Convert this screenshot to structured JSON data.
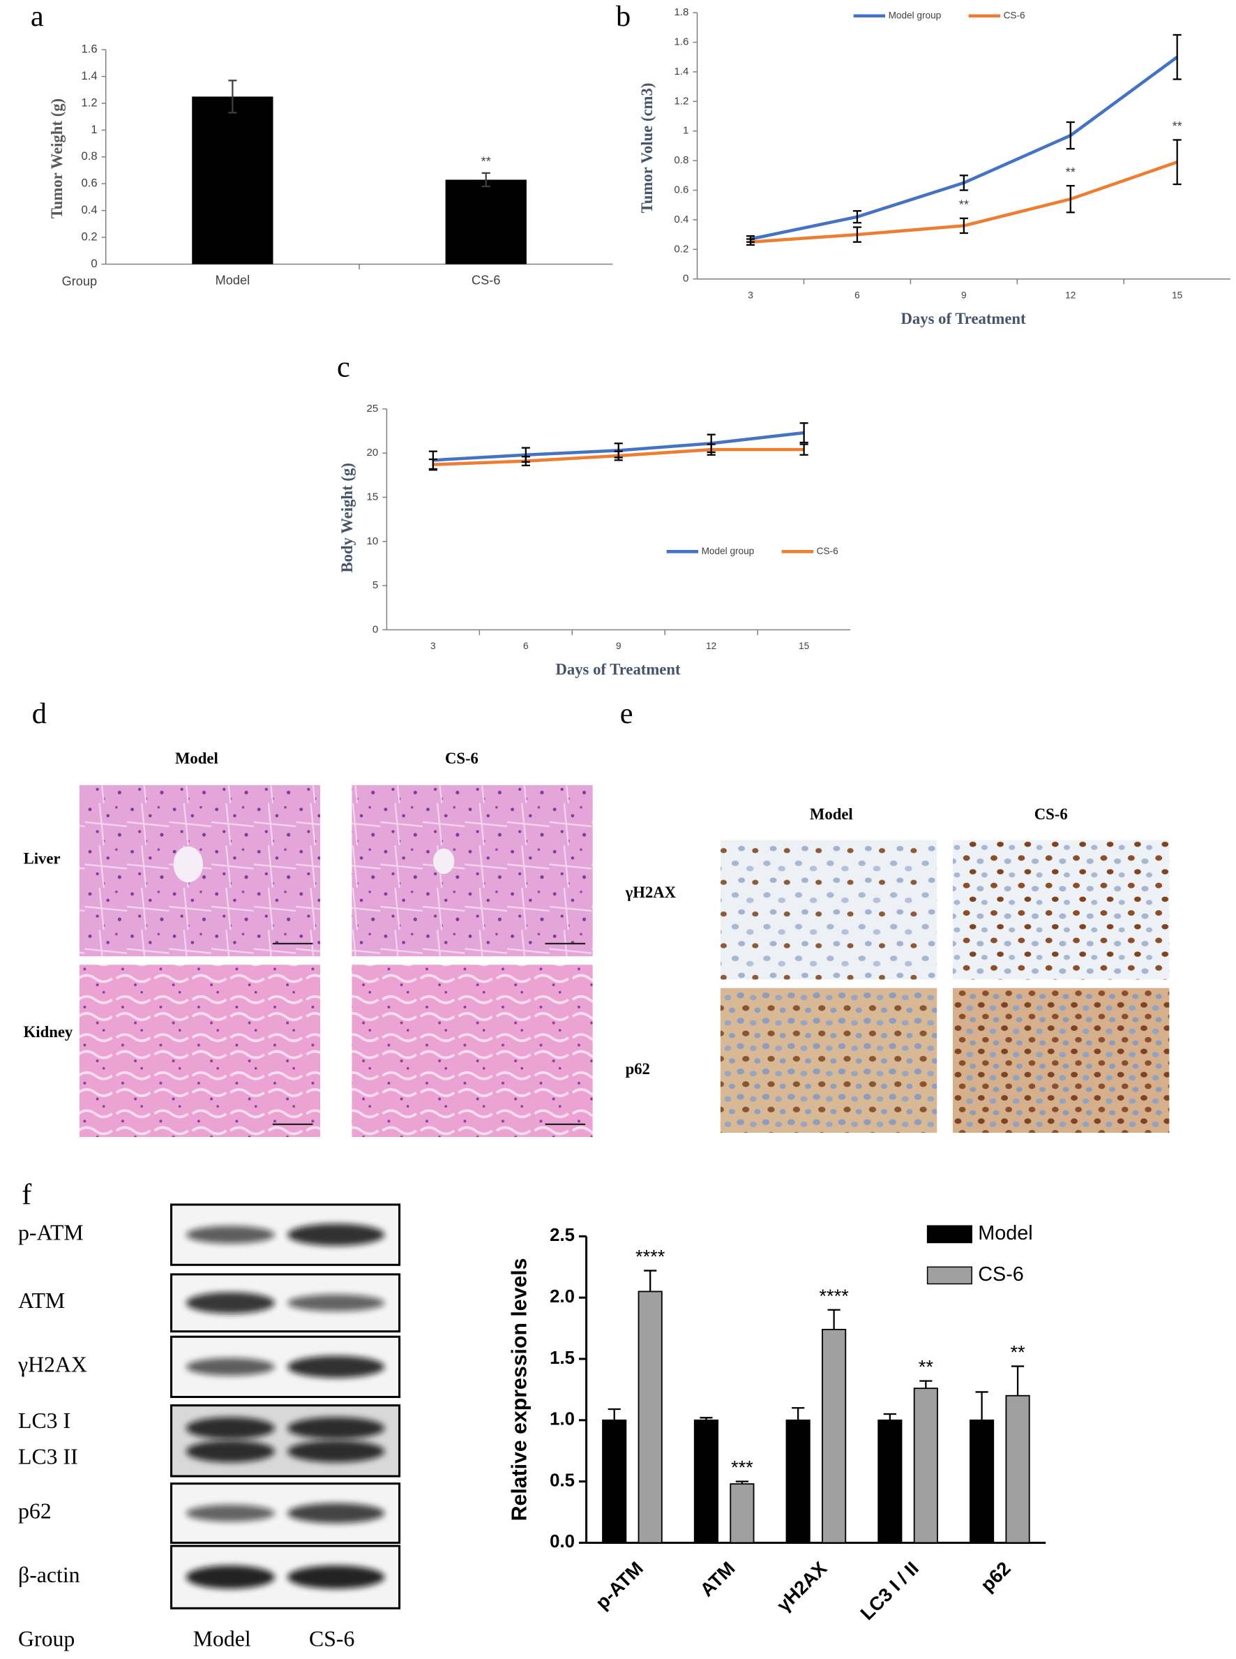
{
  "chart_data": [
    {
      "type": "bar",
      "panel": "a",
      "y_label": "Tumor Weight (g)",
      "x_label": "Group",
      "categories": [
        "Model",
        "CS-6"
      ],
      "values": [
        1.25,
        0.63
      ],
      "errors": [
        0.12,
        0.05
      ],
      "annotations": [
        null,
        "**"
      ],
      "color": "#000000",
      "ylim": [
        0,
        1.6
      ],
      "yticks": [
        0,
        0.2,
        0.4,
        0.6,
        0.8,
        1,
        1.2,
        1.4,
        1.6
      ]
    },
    {
      "type": "line",
      "panel": "b",
      "y_label": "Tumor  Volue (cm3)",
      "x_label": "Days of Treatment",
      "categories": [
        "3",
        "6",
        "9",
        "12",
        "15"
      ],
      "series": [
        {
          "name": "Model group",
          "color": "#4472c4",
          "values": [
            0.27,
            0.42,
            0.65,
            0.97,
            1.5
          ],
          "errors": [
            0.02,
            0.04,
            0.05,
            0.09,
            0.15
          ]
        },
        {
          "name": "CS-6",
          "color": "#ed7d31",
          "values": [
            0.25,
            0.3,
            0.36,
            0.54,
            0.79
          ],
          "errors": [
            0.02,
            0.05,
            0.05,
            0.09,
            0.15
          ],
          "annotations": [
            null,
            null,
            "**",
            "**",
            "**"
          ]
        }
      ],
      "ylim": [
        0,
        1.8
      ],
      "yticks": [
        0,
        0.2,
        0.4,
        0.6,
        0.8,
        1,
        1.2,
        1.4,
        1.6,
        1.8
      ],
      "legend": "top"
    },
    {
      "type": "line",
      "panel": "c",
      "y_label": "Body Weight (g)",
      "x_label": "Days of Treatment",
      "categories": [
        "3",
        "6",
        "9",
        "12",
        "15"
      ],
      "series": [
        {
          "name": "Model group",
          "color": "#4472c4",
          "values": [
            19.2,
            19.8,
            20.3,
            21.1,
            22.3
          ],
          "errors": [
            1.0,
            0.8,
            0.8,
            1.0,
            1.1
          ]
        },
        {
          "name": "CS-6",
          "color": "#ed7d31",
          "values": [
            18.7,
            19.1,
            19.7,
            20.4,
            20.4
          ],
          "errors": [
            0.6,
            0.5,
            0.5,
            0.6,
            0.6
          ]
        }
      ],
      "ylim": [
        0,
        25
      ],
      "yticks": [
        0,
        5,
        10,
        15,
        20,
        25
      ],
      "legend": "middle"
    },
    {
      "type": "grouped_bar",
      "y_label": "Relative expression levels",
      "categories": [
        "p-ATM",
        "ATM",
        "γH2AX",
        "LC3 I / II",
        "p62"
      ],
      "series": [
        {
          "name": "Model",
          "color": "#000000",
          "values": [
            1.0,
            1.0,
            1.0,
            1.0,
            1.0
          ],
          "errors": [
            0.09,
            0.02,
            0.1,
            0.05,
            0.23
          ]
        },
        {
          "name": "CS-6",
          "color": "#a0a0a0",
          "values": [
            2.05,
            0.48,
            1.74,
            1.26,
            1.2
          ],
          "errors": [
            0.17,
            0.02,
            0.16,
            0.06,
            0.24
          ],
          "annotations": [
            "****",
            "***",
            "****",
            "**",
            "**"
          ]
        }
      ],
      "ylim": [
        0,
        2.5
      ],
      "yticks": [
        {
          "value": 0,
          "label": "0.0"
        },
        {
          "value": 0.5,
          "label": "0.5"
        },
        {
          "value": 1,
          "label": "1.0"
        },
        {
          "value": 1.5,
          "label": "1.5"
        },
        {
          "value": 2,
          "label": "2.0"
        },
        {
          "value": 2.5,
          "label": "2.5"
        }
      ],
      "legend": "upper right"
    }
  ],
  "histology": {
    "panel": "d",
    "columns": [
      "Model",
      "CS-6"
    ],
    "rows": [
      "Liver",
      "Kidney"
    ]
  },
  "ihc": {
    "panel": "e",
    "columns": [
      "Model",
      "CS-6"
    ],
    "rows": [
      "γH2AX",
      "p62"
    ]
  },
  "western_blot": {
    "panel": "f",
    "rows": [
      "p-ATM",
      "ATM",
      "γH2AX",
      "LC3 I",
      "LC3 II",
      "p62",
      "β-actin"
    ],
    "group_label": "Group",
    "columns": [
      "Model",
      "CS-6"
    ]
  }
}
